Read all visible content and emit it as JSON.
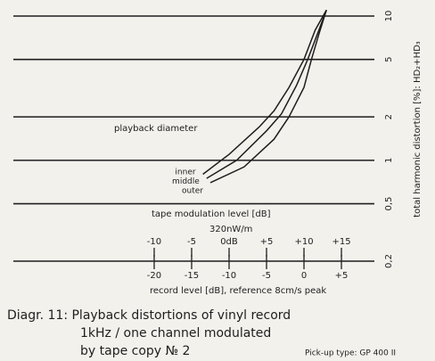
{
  "chart_data": {
    "type": "line",
    "y_scale": "log",
    "ylabel": "total harmonic distortion [%]: HD₂+HD₃",
    "ylim": [
      0.2,
      10
    ],
    "yticks": [
      10,
      5,
      2,
      1,
      {
        "value": 0.5,
        "label": "0,5"
      },
      {
        "value": 0.2,
        "label": "0,2"
      }
    ],
    "grid": true,
    "xlabel": "record level [dB], reference 8cm/s peak",
    "xlim": [
      -38.8,
      9.4
    ],
    "xticks": [
      -20,
      -15,
      -10,
      -5,
      0,
      {
        "value": 5,
        "label": "+5"
      }
    ],
    "x2label": "tape modulation level [dB]",
    "x2sublabel": "320nW/m",
    "x2lim": [
      -28.8,
      19.4
    ],
    "x2ticks": [
      -10,
      -5,
      {
        "value": 0,
        "label": "0dB"
      },
      {
        "value": 5,
        "label": "+5"
      },
      {
        "value": 10,
        "label": "+10"
      },
      {
        "value": 15,
        "label": "+15"
      }
    ],
    "annotation": "playback diameter",
    "series": [
      {
        "name": "inner",
        "color": "#1e1e1e",
        "x": [
          -13.5,
          -10,
          -6,
          -4,
          -2,
          0,
          1.5,
          3
        ],
        "values": [
          0.8,
          1.1,
          1.7,
          2.2,
          3.2,
          5,
          8,
          11
        ]
      },
      {
        "name": "middle",
        "color": "#1e1e1e",
        "x": [
          -13,
          -9,
          -5,
          -3,
          -1,
          0.5,
          2,
          3
        ],
        "values": [
          0.75,
          1.0,
          1.6,
          2.1,
          3.3,
          5,
          8,
          11
        ]
      },
      {
        "name": "outer",
        "color": "#1e1e1e",
        "x": [
          -12.5,
          -8,
          -4,
          -2,
          0,
          1,
          2,
          3
        ],
        "values": [
          0.7,
          0.9,
          1.4,
          2,
          3.2,
          5,
          7.5,
          11
        ]
      }
    ],
    "caption": [
      "Diagr. 11: Playback distortions of vinyl record",
      "1kHz / one channel modulated",
      "by tape copy № 2"
    ],
    "pickup": "Pick-up type: GP 400 II"
  }
}
